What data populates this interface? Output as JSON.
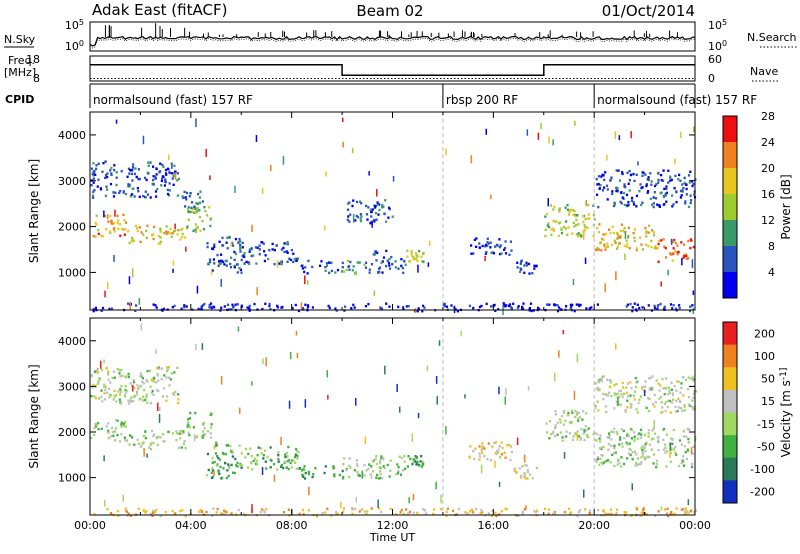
{
  "header": {
    "station": "Adak East (fitACF)",
    "beam": "Beam 02",
    "date": "01/Oct/2014"
  },
  "chart_data": [
    {
      "type": "line",
      "panel": "noise",
      "left_label": "N.Sky",
      "right_label": "N.Search",
      "left_ticks": [
        "10^5",
        "10^0"
      ],
      "right_ticks": [
        "10^5",
        "10^0"
      ],
      "series": [
        {
          "name": "N.Sky",
          "style": "solid"
        },
        {
          "name": "N.Search",
          "style": "dotted"
        }
      ]
    },
    {
      "type": "line",
      "panel": "frequency",
      "left_label_lines": [
        "Freq.",
        "[MHz]"
      ],
      "right_label": "Nave",
      "left_ticks": [
        18,
        8
      ],
      "right_ticks": [
        60,
        0
      ],
      "series": [
        {
          "name": "Freq.",
          "style": "solid",
          "points": [
            [
              0,
              14.5
            ],
            [
              10,
              14.5
            ],
            [
              10,
              10.3
            ],
            [
              18,
              10.3
            ],
            [
              18,
              14.5
            ],
            [
              24,
              14.5
            ]
          ]
        },
        {
          "name": "Nave",
          "style": "dotted",
          "points": [
            [
              0,
              9.0
            ],
            [
              24,
              9.0
            ]
          ]
        }
      ]
    },
    {
      "type": "table",
      "panel": "cpid",
      "label": "CPID",
      "segments": [
        {
          "label": "normalsound (fast) 157 RF",
          "start": 0,
          "end": 14
        },
        {
          "label": "rbsp 200 RF",
          "start": 14,
          "end": 20
        },
        {
          "label": "normalsound (fast) 157 RF",
          "start": 20,
          "end": 24
        }
      ]
    },
    {
      "type": "heatmap",
      "panel": "power",
      "ylabel": "Slant Range [km]",
      "yticks": [
        1000,
        2000,
        3000,
        4000
      ],
      "ylim": [
        180,
        4500
      ],
      "colorbar_label": "Power [dB]",
      "colorbar_ticks": [
        4,
        8,
        12,
        16,
        20,
        24,
        28
      ],
      "colorbar_colors": [
        "#0000ee",
        "#2a55c0",
        "#3a9a6a",
        "#9ccc30",
        "#e8c820",
        "#f08020",
        "#ee1010"
      ],
      "bands": [
        {
          "x": [
            0.0,
            1.5
          ],
          "y": [
            1800,
            2300
          ],
          "level": 0.72
        },
        {
          "x": [
            1.5,
            3.8
          ],
          "y": [
            1650,
            2050
          ],
          "level": 0.62
        },
        {
          "x": [
            3.8,
            4.8
          ],
          "y": [
            1900,
            2450
          ],
          "level": 0.45
        },
        {
          "x": [
            0.0,
            3.5
          ],
          "y": [
            2650,
            3450
          ],
          "level": 0.2
        },
        {
          "x": [
            3.6,
            4.6
          ],
          "y": [
            2300,
            2800
          ],
          "level": 0.3
        },
        {
          "x": [
            4.6,
            6.0
          ],
          "y": [
            1000,
            1800
          ],
          "level": 0.2
        },
        {
          "x": [
            6.0,
            8.3
          ],
          "y": [
            1200,
            1700
          ],
          "level": 0.18
        },
        {
          "x": [
            8.3,
            10.0
          ],
          "y": [
            1000,
            1300
          ],
          "level": 0.22
        },
        {
          "x": [
            10.0,
            11.2
          ],
          "y": [
            1000,
            1300
          ],
          "level": 0.35
        },
        {
          "x": [
            11.2,
            12.5
          ],
          "y": [
            1000,
            1500
          ],
          "level": 0.25
        },
        {
          "x": [
            12.5,
            13.2
          ],
          "y": [
            1250,
            1500
          ],
          "level": 0.55
        },
        {
          "x": [
            10.0,
            12.0
          ],
          "y": [
            2100,
            2600
          ],
          "level": 0.2
        },
        {
          "x": [
            15.0,
            16.8
          ],
          "y": [
            1400,
            1800
          ],
          "level": 0.15
        },
        {
          "x": [
            16.8,
            17.7
          ],
          "y": [
            1000,
            1300
          ],
          "level": 0.15
        },
        {
          "x": [
            18.0,
            20.0
          ],
          "y": [
            1800,
            2500
          ],
          "level": 0.5
        },
        {
          "x": [
            20.0,
            22.5
          ],
          "y": [
            1500,
            2100
          ],
          "level": 0.65
        },
        {
          "x": [
            22.5,
            24.0
          ],
          "y": [
            1250,
            1750
          ],
          "level": 0.8
        },
        {
          "x": [
            20.0,
            24.0
          ],
          "y": [
            2450,
            3250
          ],
          "level": 0.18
        },
        {
          "x": [
            0.0,
            24.0
          ],
          "y": [
            180,
            350
          ],
          "level": 0.08
        }
      ]
    },
    {
      "type": "heatmap",
      "panel": "velocity",
      "ylabel": "Slant Range [km]",
      "yticks": [
        1000,
        2000,
        3000,
        4000
      ],
      "ylim": [
        180,
        4500
      ],
      "xlabel": "Time UT",
      "xticks": [
        "00:00",
        "04:00",
        "08:00",
        "12:00",
        "16:00",
        "20:00",
        "00:00"
      ],
      "xlim": [
        0,
        24
      ],
      "colorbar_label": "Velocity [m s^-1]",
      "colorbar_ticks": [
        200,
        100,
        50,
        15,
        -15,
        -50,
        -100,
        -200
      ],
      "colorbar_colors": [
        "#1030c0",
        "#2a7a5a",
        "#40b040",
        "#a0d860",
        "#c0c0c0",
        "#f0c020",
        "#f08020",
        "#e82020"
      ],
      "bands": [
        {
          "x": [
            0.0,
            1.5
          ],
          "y": [
            1800,
            2300
          ],
          "level": 0.45
        },
        {
          "x": [
            1.5,
            3.8
          ],
          "y": [
            1650,
            2050
          ],
          "level": 0.45
        },
        {
          "x": [
            3.8,
            4.8
          ],
          "y": [
            1900,
            2450
          ],
          "level": 0.45
        },
        {
          "x": [
            0.0,
            3.5
          ],
          "y": [
            2650,
            3450
          ],
          "level": 0.5
        },
        {
          "x": [
            4.6,
            6.0
          ],
          "y": [
            1000,
            1800
          ],
          "level": 0.3
        },
        {
          "x": [
            6.0,
            8.3
          ],
          "y": [
            1200,
            1700
          ],
          "level": 0.35
        },
        {
          "x": [
            8.3,
            10.0
          ],
          "y": [
            1000,
            1300
          ],
          "level": 0.3
        },
        {
          "x": [
            10.0,
            12.5
          ],
          "y": [
            1000,
            1500
          ],
          "level": 0.45
        },
        {
          "x": [
            12.5,
            13.2
          ],
          "y": [
            1250,
            1500
          ],
          "level": 0.3
        },
        {
          "x": [
            15.0,
            16.8
          ],
          "y": [
            1400,
            1800
          ],
          "level": 0.65
        },
        {
          "x": [
            16.8,
            17.7
          ],
          "y": [
            1000,
            1300
          ],
          "level": 0.6
        },
        {
          "x": [
            18.0,
            20.0
          ],
          "y": [
            1800,
            2500
          ],
          "level": 0.45
        },
        {
          "x": [
            20.0,
            24.0
          ],
          "y": [
            1250,
            2100
          ],
          "level": 0.45
        },
        {
          "x": [
            20.0,
            24.0
          ],
          "y": [
            2450,
            3250
          ],
          "level": 0.5
        },
        {
          "x": [
            0.0,
            24.0
          ],
          "y": [
            180,
            350
          ],
          "level": 0.7
        }
      ]
    }
  ]
}
